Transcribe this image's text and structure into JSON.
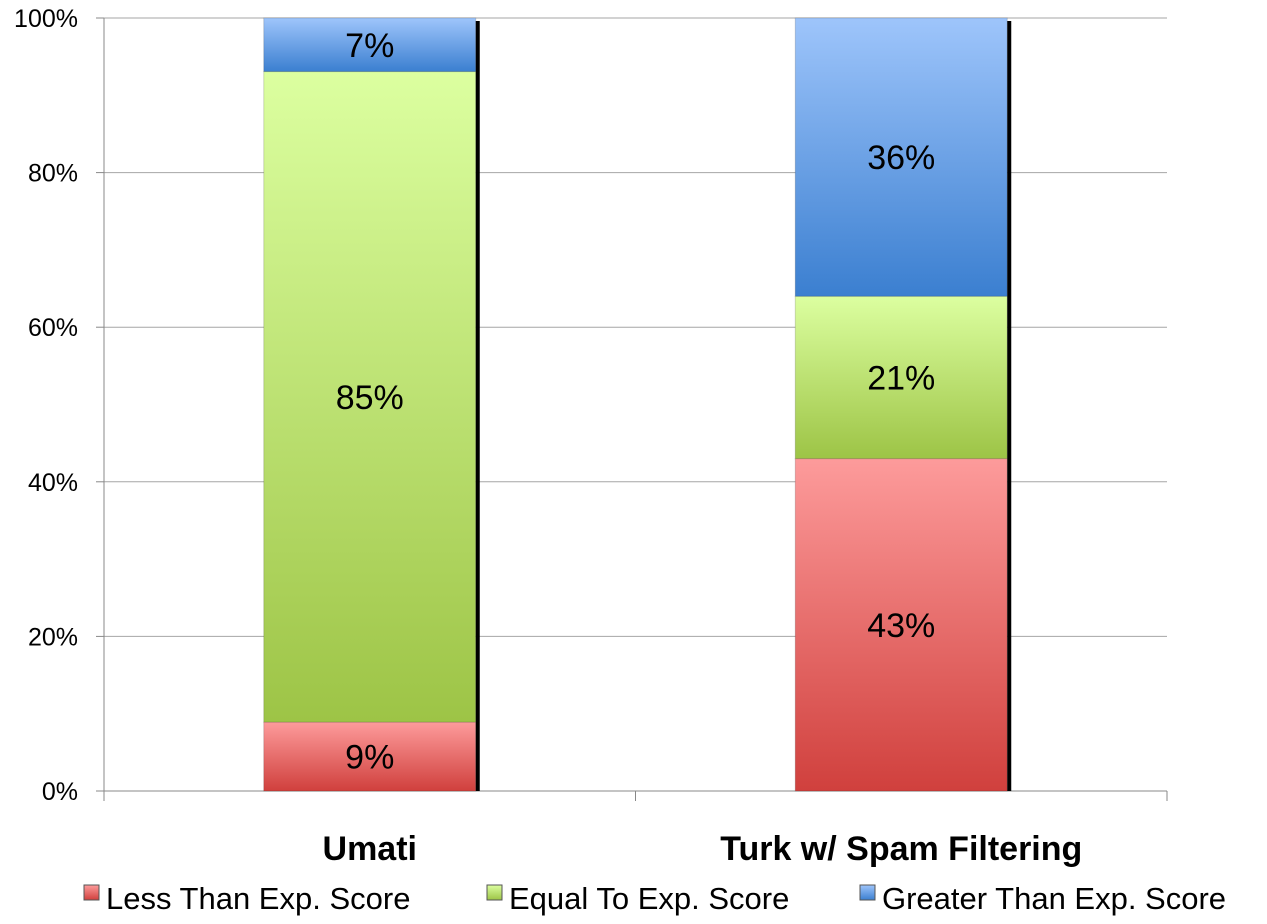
{
  "chart_data": {
    "type": "bar",
    "stacked": true,
    "percent_stacked": true,
    "categories": [
      "Umati",
      "Turk w/ Spam Filtering"
    ],
    "series": [
      {
        "name": "Less Than Exp. Score",
        "values": [
          9,
          43
        ],
        "labels": [
          "9%",
          "43%"
        ],
        "color_top": "#fd9b9b",
        "color_bottom": "#d0403d"
      },
      {
        "name": "Equal To Exp. Score",
        "values": [
          85,
          21
        ],
        "labels": [
          "85%",
          "21%"
        ],
        "color_top": "#dcffa0",
        "color_bottom": "#9dc446"
      },
      {
        "name": "Greater Than Exp. Score",
        "values": [
          7,
          36
        ],
        "labels": [
          "7%",
          "36%"
        ],
        "color_top": "#9ec5fb",
        "color_bottom": "#3b7fd0"
      }
    ],
    "y_ticks": [
      "0%",
      "20%",
      "40%",
      "60%",
      "80%",
      "100%"
    ],
    "ylim": [
      0,
      100
    ],
    "grid": true,
    "legend_position": "bottom"
  }
}
